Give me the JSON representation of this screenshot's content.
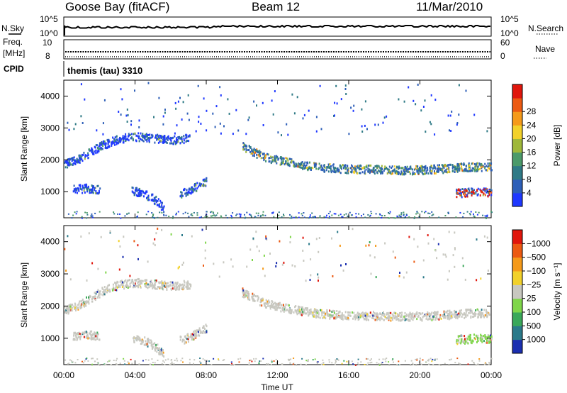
{
  "header": {
    "station": "Goose Bay (fitACF)",
    "beam": "Beam 12",
    "date": "11/Mar/2010"
  },
  "panels": {
    "nsky": {
      "label": "N.Sky",
      "tick_hi": "10^5",
      "tick_lo": "10^0",
      "right_label": "N.Search",
      "right_hi": "10^5",
      "right_lo": "10^0"
    },
    "freq": {
      "label_top": "Freq.",
      "label_bot": "[MHz]",
      "tick_hi": "10",
      "tick_lo": "8",
      "right_label": "Nave",
      "right_hi": "60",
      "right_lo": "0"
    },
    "cpid": {
      "label": "CPID",
      "text": "themis (tau) 3310"
    }
  },
  "chart_data": [
    {
      "type": "heatmap",
      "title": "",
      "xlabel": "Time UT",
      "ylabel": "Slant Range [km]",
      "xticks": [
        "00:00",
        "04:00",
        "08:00",
        "12:00",
        "16:00",
        "20:00",
        "00:00"
      ],
      "xlim_hours": [
        0,
        24
      ],
      "ylim": [
        180,
        4500
      ],
      "yticks": [
        1000,
        2000,
        3000,
        4000
      ],
      "colorbar": {
        "label": "Power [dB]",
        "ticks": [
          4,
          8,
          12,
          16,
          20,
          24,
          28
        ],
        "colors": [
          "#1f38ff",
          "#2e5fb8",
          "#2f7a86",
          "#4b9a6a",
          "#9fb83a",
          "#f2d12a",
          "#f59a1a",
          "#ec5a12",
          "#e0160c"
        ]
      },
      "bands": [
        {
          "t": [
            0.0,
            7.1
          ],
          "r": [
            1880,
            2100,
            2450,
            2680,
            2750,
            2700,
            2650,
            2700
          ]
        },
        {
          "t": [
            10.0,
            24.0
          ],
          "r": [
            2450,
            2100,
            1950,
            1820,
            1760,
            1730,
            1720,
            1700,
            1710,
            1750,
            1800,
            1820
          ]
        },
        {
          "t": [
            0.5,
            2.0
          ],
          "r": [
            1100,
            1130,
            1100
          ]
        },
        {
          "t": [
            3.8,
            5.6
          ],
          "r": [
            1050,
            1000,
            900,
            750,
            500
          ]
        },
        {
          "t": [
            6.5,
            8.0
          ],
          "r": [
            950,
            1050,
            1200,
            1350
          ]
        },
        {
          "t": [
            22.0,
            24.0
          ],
          "r": [
            980,
            1000,
            1030,
            1000
          ]
        }
      ]
    },
    {
      "type": "heatmap",
      "title": "",
      "xlabel": "Time UT",
      "ylabel": "Slant Range [km]",
      "xticks": [
        "00:00",
        "04:00",
        "08:00",
        "12:00",
        "16:00",
        "20:00",
        "00:00"
      ],
      "xlim_hours": [
        0,
        24
      ],
      "ylim": [
        180,
        4500
      ],
      "yticks": [
        1000,
        2000,
        3000,
        4000
      ],
      "colorbar": {
        "label": "Velocity [m s⁻¹]",
        "ticks": [
          "1000",
          "500",
          "100",
          "25",
          "−25",
          "−100",
          "−500",
          "−1000"
        ],
        "colors": [
          "#1b2fb0",
          "#2b7a8a",
          "#3aa85a",
          "#7fd64a",
          "#c8c8c0",
          "#f2d12a",
          "#f59a1a",
          "#ec5a12",
          "#e0160c"
        ]
      },
      "bands": [
        {
          "t": [
            0.0,
            7.1
          ],
          "r": [
            1880,
            2100,
            2450,
            2680,
            2750,
            2700,
            2650,
            2700
          ]
        },
        {
          "t": [
            10.0,
            24.0
          ],
          "r": [
            2450,
            2100,
            1950,
            1820,
            1760,
            1730,
            1720,
            1700,
            1710,
            1750,
            1800,
            1820
          ]
        },
        {
          "t": [
            0.5,
            2.0
          ],
          "r": [
            1100,
            1130,
            1100
          ]
        },
        {
          "t": [
            3.8,
            5.6
          ],
          "r": [
            1050,
            1000,
            900,
            750,
            500
          ]
        },
        {
          "t": [
            6.5,
            8.0
          ],
          "r": [
            950,
            1050,
            1200,
            1350
          ]
        },
        {
          "t": [
            22.0,
            24.0
          ],
          "r": [
            980,
            1000,
            1030,
            1000
          ]
        }
      ]
    }
  ]
}
